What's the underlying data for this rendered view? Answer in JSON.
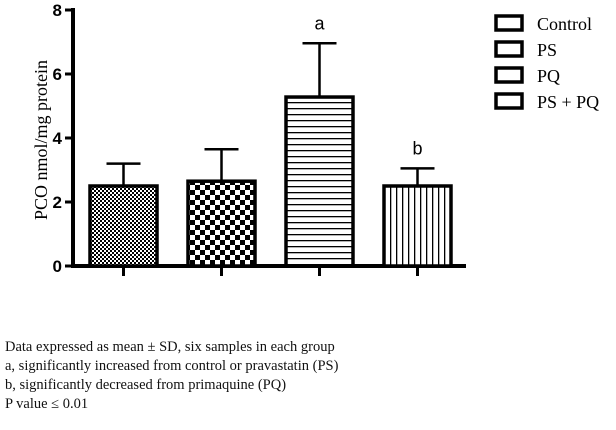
{
  "chart_data": {
    "type": "bar",
    "categories": [
      "Control",
      "PS",
      "PQ",
      "PS + PQ"
    ],
    "values": [
      2.5,
      2.65,
      5.28,
      2.5
    ],
    "errors": [
      0.7,
      1.0,
      1.68,
      0.55
    ],
    "annotations": [
      "",
      "",
      "a",
      "b"
    ],
    "patterns": [
      "fine-checker",
      "coarse-checker",
      "horizontal-lines",
      "vertical-lines"
    ],
    "ylabel": "PCO nmol/mg protein",
    "ylim": [
      0,
      8
    ],
    "yticks": [
      0,
      2,
      4,
      6,
      8
    ],
    "legend": {
      "position": "top-right",
      "entries": [
        "Control",
        "PS",
        "PQ",
        "PS + PQ"
      ]
    },
    "grid": false
  },
  "notes": [
    "Data expressed as mean ± SD, six samples in each group",
    "a, significantly increased from control or pravastatin (PS)",
    "b, significantly decreased from primaquine (PQ)",
    "P value ≤ 0.01"
  ]
}
